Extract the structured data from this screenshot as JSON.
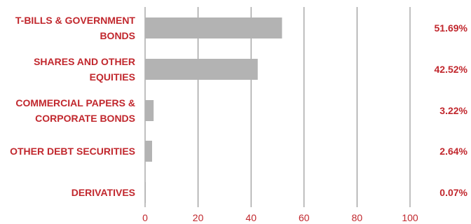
{
  "chart_data": {
    "type": "bar",
    "orientation": "horizontal",
    "categories": [
      [
        "T-BILLS & GOVERNMENT",
        "BONDS"
      ],
      [
        "SHARES AND OTHER",
        "EQUITIES"
      ],
      [
        "COMMERCIAL PAPERS &",
        "CORPORATE BONDS"
      ],
      [
        "OTHER DEBT SECURITIES"
      ],
      [
        "DERIVATIVES"
      ]
    ],
    "values": [
      51.69,
      42.52,
      3.22,
      2.64,
      0.07
    ],
    "value_labels": [
      "51.69%",
      "42.52%",
      "3.22%",
      "2.64%",
      "0.07%"
    ],
    "xlim": [
      0,
      100
    ],
    "x_ticks": [
      "0",
      "20",
      "40",
      "60",
      "80",
      "100"
    ],
    "grid": true,
    "colors": {
      "bar": "#b3b3b3",
      "text": "#c1272d",
      "grid": "#808080"
    }
  }
}
